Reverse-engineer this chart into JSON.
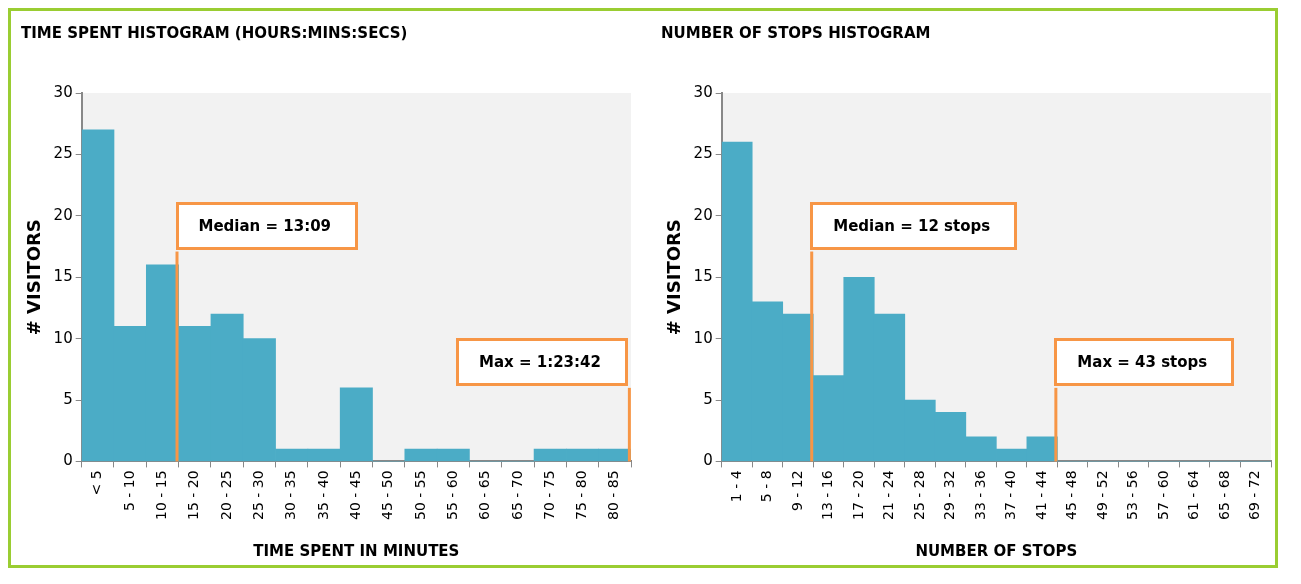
{
  "chart_data": [
    {
      "type": "bar",
      "title": "TIME SPENT HISTOGRAM (HOURS:MINS:SECS)",
      "xlabel": "TIME SPENT IN MINUTES",
      "ylabel": "# VISITORS",
      "categories": [
        "< 5",
        "5 - 10",
        "10 - 15",
        "15 - 20",
        "20 - 25",
        "25 - 30",
        "30 - 35",
        "35 - 40",
        "40 - 45",
        "45 - 50",
        "50 - 55",
        "55 - 60",
        "60 - 65",
        "65 - 70",
        "70 - 75",
        "75 - 80",
        "80 - 85"
      ],
      "values": [
        27,
        11,
        16,
        11,
        12,
        10,
        1,
        1,
        6,
        0,
        1,
        1,
        0,
        0,
        1,
        1,
        1
      ],
      "color": "#4bacc6",
      "ylim": [
        0,
        30
      ],
      "yticks": [
        0,
        5,
        10,
        15,
        20,
        25,
        30
      ],
      "grid": false,
      "ref_lines": [
        {
          "axis": "x",
          "value": "10 - 15",
          "label": "Median = 13:09",
          "color": "#f79646"
        },
        {
          "axis": "x",
          "value": "80 - 85",
          "label": "Max = 1:23:42",
          "color": "#f79646"
        }
      ]
    },
    {
      "type": "bar",
      "title": "NUMBER OF STOPS HISTOGRAM",
      "xlabel": "NUMBER OF STOPS",
      "ylabel": "# VISITORS",
      "categories": [
        "1 - 4",
        "5 - 8",
        "9 - 12",
        "13 - 16",
        "17 - 20",
        "21 - 24",
        "25 - 28",
        "29 - 32",
        "33 - 36",
        "37 - 40",
        "41 - 44",
        "45 - 48",
        "49 - 52",
        "53 - 56",
        "57 - 60",
        "61 - 64",
        "65 - 68",
        "69 - 72"
      ],
      "values": [
        26,
        13,
        12,
        7,
        15,
        12,
        5,
        4,
        2,
        1,
        2,
        0,
        0,
        0,
        0,
        0,
        0,
        0
      ],
      "color": "#4bacc6",
      "ylim": [
        0,
        30
      ],
      "yticks": [
        0,
        5,
        10,
        15,
        20,
        25,
        30
      ],
      "grid": false,
      "ref_lines": [
        {
          "axis": "x",
          "value": "9 - 12",
          "label": "Median = 12 stops",
          "color": "#f79646"
        },
        {
          "axis": "x",
          "value": "41 - 44",
          "label": "Max = 43 stops",
          "color": "#f79646"
        }
      ]
    }
  ]
}
